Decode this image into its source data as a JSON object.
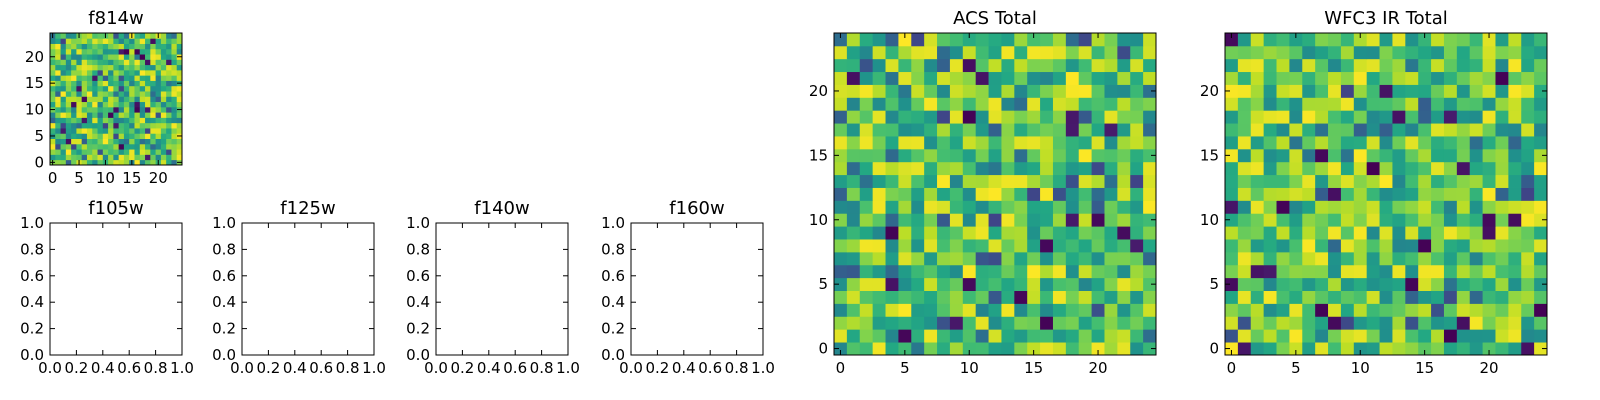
{
  "chart_data": [
    {
      "type": "heatmap",
      "title": "f814w",
      "xlabel": "",
      "ylabel": "",
      "grid": false,
      "size": [
        25,
        25
      ],
      "colormap": "viridis",
      "xlim": [
        -0.5,
        24.5
      ],
      "ylim": [
        -0.5,
        24.5
      ],
      "xticks": [
        0,
        5,
        10,
        15,
        20
      ],
      "yticks": [
        0,
        5,
        10,
        15,
        20
      ],
      "xtick_labels": [
        "0",
        "5",
        "10",
        "15",
        "20"
      ],
      "ytick_labels": [
        "0",
        "5",
        "10",
        "15",
        "20"
      ],
      "values": "random noise (mostly 0.55–0.95 of colormap, occasional low outliers)"
    },
    {
      "type": "heatmap",
      "title": "ACS Total",
      "xlabel": "",
      "ylabel": "",
      "grid": false,
      "size": [
        25,
        25
      ],
      "colormap": "viridis",
      "xlim": [
        -0.5,
        24.5
      ],
      "ylim": [
        -0.5,
        24.5
      ],
      "xticks": [
        0,
        5,
        10,
        15,
        20
      ],
      "yticks": [
        0,
        5,
        10,
        15,
        20
      ],
      "xtick_labels": [
        "0",
        "5",
        "10",
        "15",
        "20"
      ],
      "ytick_labels": [
        "0",
        "5",
        "10",
        "15",
        "20"
      ],
      "values": "random noise (mostly 0.55–0.95 of colormap, occasional low outliers)"
    },
    {
      "type": "heatmap",
      "title": "WFC3 IR Total",
      "xlabel": "",
      "ylabel": "",
      "grid": false,
      "size": [
        25,
        25
      ],
      "colormap": "viridis",
      "xlim": [
        -0.5,
        24.5
      ],
      "ylim": [
        -0.5,
        24.5
      ],
      "xticks": [
        0,
        5,
        10,
        15,
        20
      ],
      "yticks": [
        0,
        5,
        10,
        15,
        20
      ],
      "xtick_labels": [
        "0",
        "5",
        "10",
        "15",
        "20"
      ],
      "ytick_labels": [
        "0",
        "5",
        "10",
        "15",
        "20"
      ],
      "values": "random noise (mostly 0.55–0.95 of colormap, occasional low outliers)"
    },
    {
      "type": "line",
      "title": "f105w",
      "xlabel": "",
      "ylabel": "",
      "grid": false,
      "xlim": [
        0.0,
        1.0
      ],
      "ylim": [
        0.0,
        1.0
      ],
      "xticks": [
        "0.0",
        "0.2",
        "0.4",
        "0.6",
        "0.8",
        "1.0"
      ],
      "yticks": [
        "0.0",
        "0.2",
        "0.4",
        "0.6",
        "0.8",
        "1.0"
      ],
      "series": []
    },
    {
      "type": "line",
      "title": "f125w",
      "xlabel": "",
      "ylabel": "",
      "grid": false,
      "xlim": [
        0.0,
        1.0
      ],
      "ylim": [
        0.0,
        1.0
      ],
      "xticks": [
        "0.0",
        "0.2",
        "0.4",
        "0.6",
        "0.8",
        "1.0"
      ],
      "yticks": [
        "0.0",
        "0.2",
        "0.4",
        "0.6",
        "0.8",
        "1.0"
      ],
      "series": []
    },
    {
      "type": "line",
      "title": "f140w",
      "xlabel": "",
      "ylabel": "",
      "grid": false,
      "xlim": [
        0.0,
        1.0
      ],
      "ylim": [
        0.0,
        1.0
      ],
      "xticks": [
        "0.0",
        "0.2",
        "0.4",
        "0.6",
        "0.8",
        "1.0"
      ],
      "yticks": [
        "0.0",
        "0.2",
        "0.4",
        "0.6",
        "0.8",
        "1.0"
      ],
      "series": []
    },
    {
      "type": "line",
      "title": "f160w",
      "xlabel": "",
      "ylabel": "",
      "grid": false,
      "xlim": [
        0.0,
        1.0
      ],
      "ylim": [
        0.0,
        1.0
      ],
      "xticks": [
        "0.0",
        "0.2",
        "0.4",
        "0.6",
        "0.8",
        "1.0"
      ],
      "yticks": [
        "0.0",
        "0.2",
        "0.4",
        "0.6",
        "0.8",
        "1.0"
      ],
      "series": []
    }
  ],
  "palette": {
    "background": "#ffffff",
    "axes": "#000000"
  }
}
